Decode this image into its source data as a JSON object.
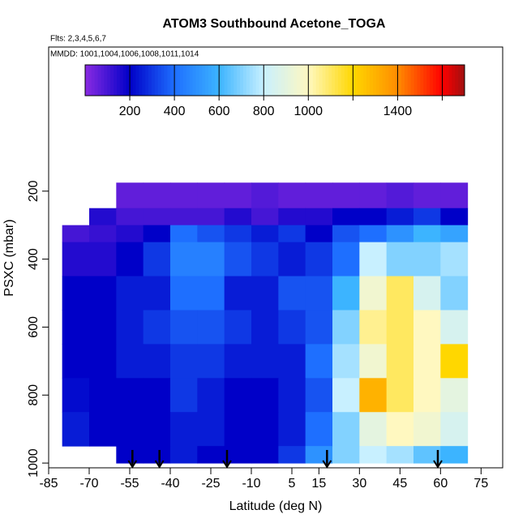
{
  "chart_data": {
    "type": "heatmap",
    "title": "ATOM3 Southbound Acetone_TOGA",
    "subtitle": "Flts: 2,3,4,5,6,7",
    "annotation": "MMDD: 1001,1004,1006,1008,1011,1014",
    "xlabel": "Latitude (deg N)",
    "ylabel": "PSXC (mbar)",
    "xlim": [
      -85,
      83
    ],
    "ylim": [
      1014,
      -224
    ],
    "xticks": [
      -85,
      -70,
      -55,
      -40,
      -25,
      -10,
      5,
      15,
      30,
      45,
      60,
      75
    ],
    "yticks": [
      200,
      400,
      600,
      800,
      1000
    ],
    "x_edges": [
      -80,
      -70,
      -60,
      -50,
      -40,
      -30,
      -20,
      -10,
      0,
      10,
      20,
      30,
      40,
      50,
      60,
      70
    ],
    "y_edges": [
      175,
      250,
      300,
      350,
      450,
      550,
      650,
      750,
      850,
      950,
      1000
    ],
    "values": [
      [
        null,
        null,
        60,
        60,
        60,
        60,
        60,
        80,
        60,
        60,
        60,
        60,
        80,
        60,
        60
      ],
      [
        null,
        150,
        100,
        100,
        100,
        100,
        150,
        100,
        150,
        150,
        200,
        200,
        250,
        300,
        200
      ],
      [
        100,
        120,
        150,
        200,
        400,
        350,
        300,
        250,
        300,
        200,
        350,
        400,
        500,
        600,
        550
      ],
      [
        150,
        150,
        200,
        300,
        450,
        450,
        350,
        300,
        250,
        300,
        400,
        800,
        700,
        700,
        750
      ],
      [
        200,
        200,
        250,
        250,
        400,
        400,
        250,
        250,
        350,
        350,
        600,
        950,
        1100,
        850,
        700
      ],
      [
        200,
        200,
        250,
        300,
        350,
        350,
        300,
        250,
        300,
        350,
        700,
        1050,
        1100,
        1000,
        850
      ],
      [
        200,
        200,
        250,
        250,
        300,
        300,
        250,
        250,
        250,
        400,
        750,
        950,
        1100,
        1000,
        1200
      ],
      [
        220,
        200,
        200,
        200,
        300,
        250,
        200,
        200,
        250,
        350,
        800,
        1300,
        1100,
        1000,
        900
      ],
      [
        250,
        200,
        200,
        200,
        250,
        250,
        200,
        200,
        250,
        400,
        700,
        900,
        1000,
        950,
        850
      ],
      [
        null,
        null,
        200,
        200,
        250,
        200,
        200,
        200,
        300,
        500,
        700,
        800,
        750,
        650,
        600
      ]
    ],
    "arrows_x": [
      -54,
      -44,
      -19,
      18,
      59
    ],
    "colorbar_lim": [
      0,
      1700
    ],
    "colorbar_ticks": [
      200,
      400,
      600,
      800,
      1000,
      1400
    ],
    "colorbar_breaks": [
      200,
      400,
      600,
      800,
      1000,
      1200,
      1400,
      1600
    ],
    "color_stops": [
      [
        0,
        "#8a2be2"
      ],
      [
        200,
        "#0000c8"
      ],
      [
        400,
        "#1e6fff"
      ],
      [
        600,
        "#3cb4ff"
      ],
      [
        800,
        "#c8f0ff"
      ],
      [
        1000,
        "#fff8c0"
      ],
      [
        1200,
        "#ffd700"
      ],
      [
        1400,
        "#ff8c00"
      ],
      [
        1600,
        "#ff0000"
      ],
      [
        1700,
        "#a01010"
      ]
    ]
  }
}
